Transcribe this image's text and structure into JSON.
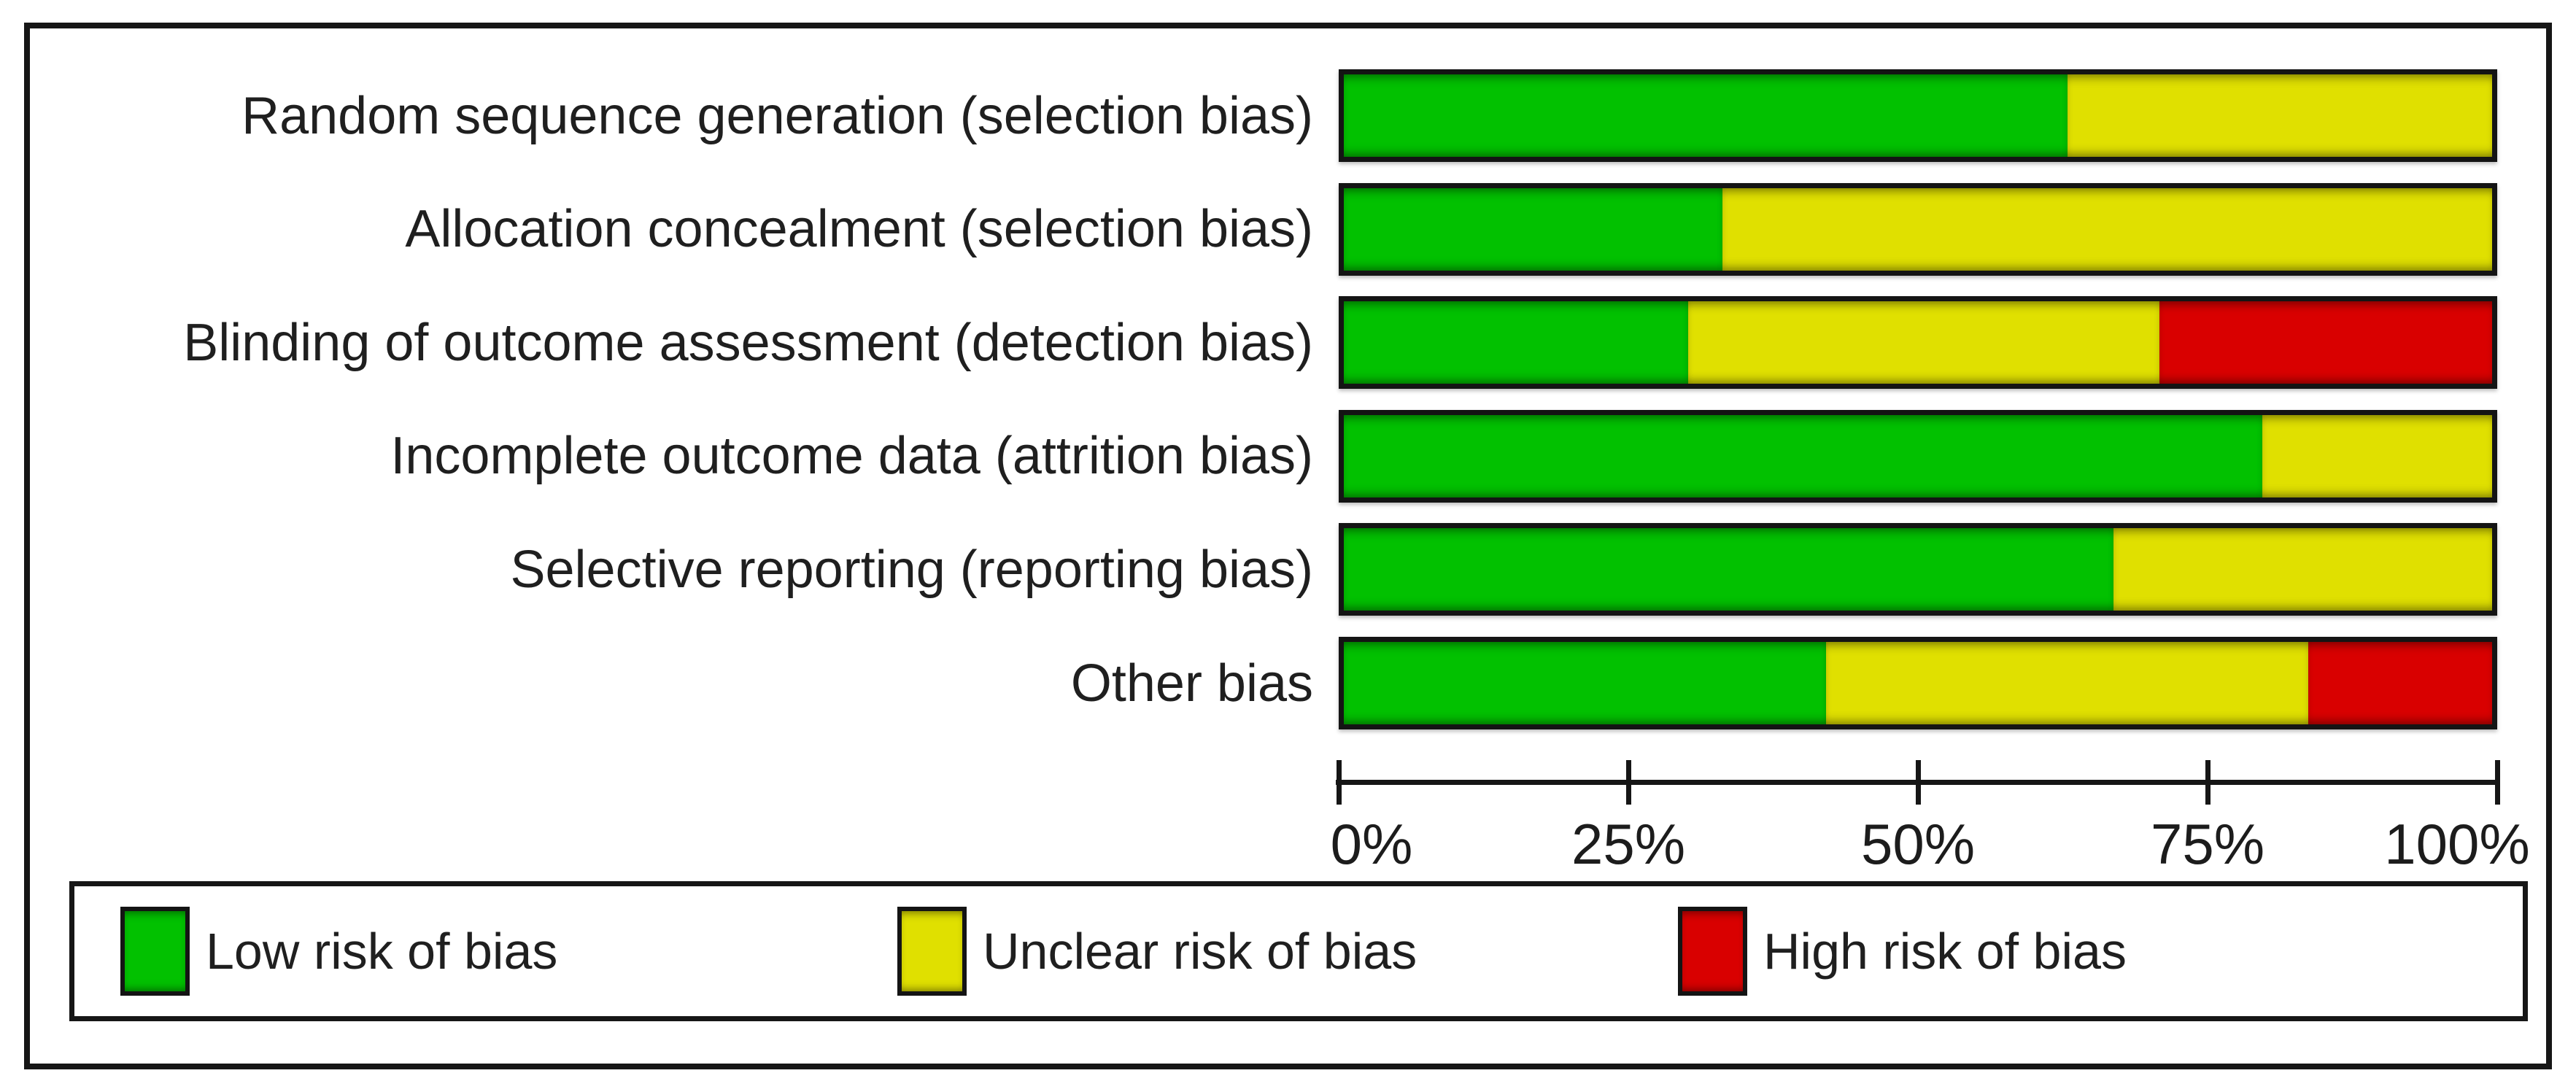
{
  "chart_data": {
    "type": "bar",
    "variant": "horizontal-stacked",
    "title": "",
    "xlabel": "",
    "ylabel": "",
    "grid": false,
    "categories": [
      "Random sequence generation (selection bias)",
      "Allocation concealment (selection bias)",
      "Blinding of outcome assessment (detection bias)",
      "Incomplete outcome data (attrition bias)",
      "Selective reporting (reporting bias)",
      "Other bias"
    ],
    "series": [
      {
        "name": "Low risk of bias",
        "color": "#02c100",
        "values": [
          63,
          33,
          30,
          80,
          67,
          42
        ]
      },
      {
        "name": "Unclear risk of bias",
        "color": "#e0e000",
        "values": [
          37,
          67,
          41,
          20,
          33,
          42
        ]
      },
      {
        "name": "High risk of bias",
        "color": "#d90000",
        "values": [
          0,
          0,
          29,
          0,
          0,
          16
        ]
      }
    ],
    "x_axis": {
      "range": [
        0,
        100
      ],
      "tick_labels": [
        "0%",
        "25%",
        "50%",
        "75%",
        "100%"
      ]
    },
    "legend_position": "bottom",
    "legend": [
      "Low risk of bias",
      "Unclear risk of bias",
      "High risk of bias"
    ]
  },
  "colors": {
    "low_risk": "#02c100",
    "unclear_risk": "#e0e000",
    "high_risk": "#d90000",
    "border": "#161616",
    "background": "#ffffff",
    "text": "#1f1f1f"
  }
}
